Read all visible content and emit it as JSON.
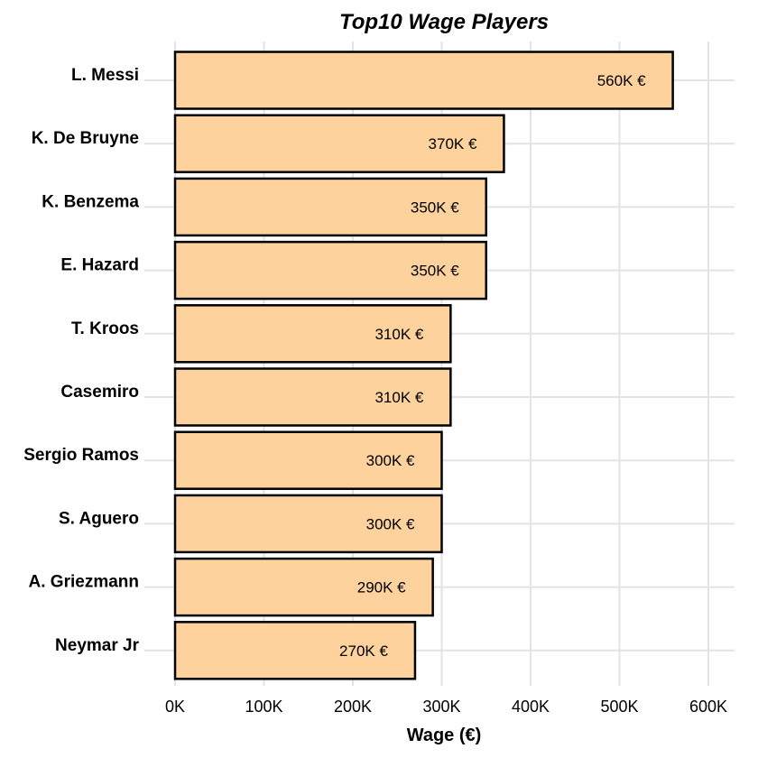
{
  "chart_data": {
    "type": "bar",
    "orientation": "horizontal",
    "title": "Top10 Wage Players",
    "xlabel": "Wage (€)",
    "ylabel": "",
    "xlim": [
      0,
      630000
    ],
    "xticks": [
      0,
      100000,
      200000,
      300000,
      400000,
      500000,
      600000
    ],
    "xtick_labels": [
      "0K",
      "100K",
      "200K",
      "300K",
      "400K",
      "500K",
      "600K"
    ],
    "grid": true,
    "bar_color": "#fdd29d",
    "categories": [
      "L. Messi",
      "K. De Bruyne",
      "K. Benzema",
      "E. Hazard",
      "T. Kroos",
      "Casemiro",
      "Sergio Ramos",
      "S. Aguero",
      "A. Griezmann",
      "Neymar Jr"
    ],
    "values": [
      560000,
      370000,
      350000,
      350000,
      310000,
      310000,
      300000,
      300000,
      290000,
      270000
    ],
    "data_labels": [
      "560K €",
      "370K €",
      "350K €",
      "350K €",
      "310K €",
      "310K €",
      "300K €",
      "300K €",
      "290K €",
      "270K €"
    ]
  }
}
